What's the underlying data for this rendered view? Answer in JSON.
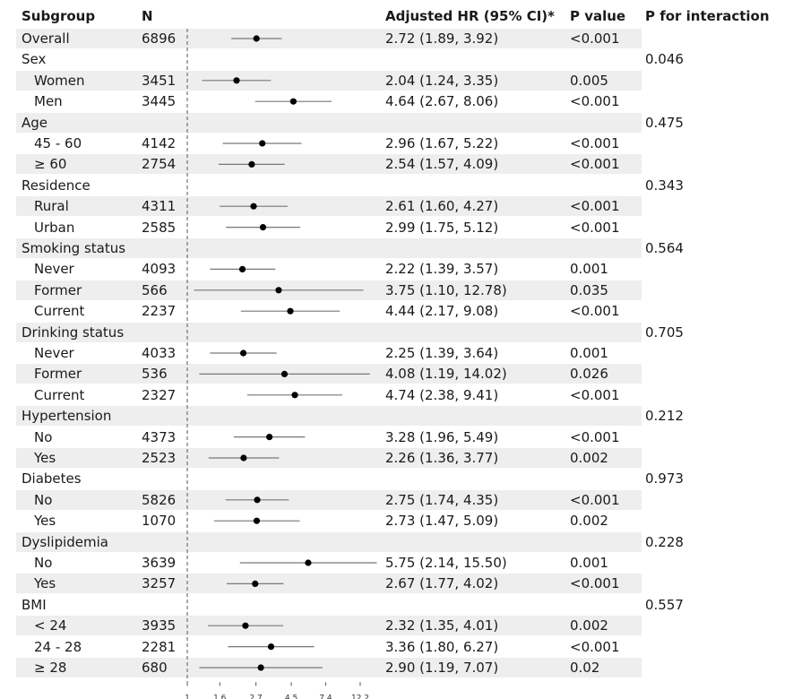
{
  "headers": {
    "subgroup": "Subgroup",
    "n": "N",
    "hr": "Adjusted HR (95% CI)*",
    "p": "P value",
    "p_interaction": "P for interaction"
  },
  "chart_data": {
    "type": "forest",
    "scale": "log",
    "reference_line": 1,
    "x_ticks": [
      1,
      1.6,
      2.7,
      4.5,
      7.4,
      12.2
    ],
    "x_tick_labels": [
      "1",
      "1.6",
      "2.7",
      "4.5",
      "7.4",
      "12.2"
    ],
    "rows": [
      {
        "label": "Overall",
        "n": "6896",
        "hr": 2.72,
        "lo": 1.89,
        "hi": 3.92,
        "hr_text": "2.72 (1.89, 3.92)",
        "p": "<0.001"
      },
      {
        "label": "Sex",
        "group": true,
        "p_interaction": "0.046"
      },
      {
        "label": "Women",
        "n": "3451",
        "hr": 2.04,
        "lo": 1.24,
        "hi": 3.35,
        "hr_text": "2.04 (1.24, 3.35)",
        "p": "0.005"
      },
      {
        "label": "Men",
        "n": "3445",
        "hr": 4.64,
        "lo": 2.67,
        "hi": 8.06,
        "hr_text": "4.64 (2.67, 8.06)",
        "p": "<0.001"
      },
      {
        "label": "Age",
        "group": true,
        "p_interaction": "0.475"
      },
      {
        "label": "45 - 60",
        "n": "4142",
        "hr": 2.96,
        "lo": 1.67,
        "hi": 5.22,
        "hr_text": "2.96 (1.67, 5.22)",
        "p": "<0.001"
      },
      {
        "label": "≥ 60",
        "n": "2754",
        "hr": 2.54,
        "lo": 1.57,
        "hi": 4.09,
        "hr_text": "2.54 (1.57, 4.09)",
        "p": "<0.001"
      },
      {
        "label": "Residence",
        "group": true,
        "p_interaction": "0.343"
      },
      {
        "label": "Rural",
        "n": "4311",
        "hr": 2.61,
        "lo": 1.6,
        "hi": 4.27,
        "hr_text": "2.61 (1.60, 4.27)",
        "p": "<0.001"
      },
      {
        "label": "Urban",
        "n": "2585",
        "hr": 2.99,
        "lo": 1.75,
        "hi": 5.12,
        "hr_text": "2.99 (1.75, 5.12)",
        "p": "<0.001"
      },
      {
        "label": "Smoking status",
        "group": true,
        "p_interaction": "0.564"
      },
      {
        "label": "Never",
        "n": "4093",
        "hr": 2.22,
        "lo": 1.39,
        "hi": 3.57,
        "hr_text": "2.22 (1.39, 3.57)",
        "p": "0.001"
      },
      {
        "label": "Former",
        "n": "566",
        "hr": 3.75,
        "lo": 1.1,
        "hi": 12.78,
        "hr_text": "3.75 (1.10, 12.78)",
        "p": "0.035"
      },
      {
        "label": "Current",
        "n": "2237",
        "hr": 4.44,
        "lo": 2.17,
        "hi": 9.08,
        "hr_text": "4.44 (2.17, 9.08)",
        "p": "<0.001"
      },
      {
        "label": "Drinking status",
        "group": true,
        "p_interaction": "0.705"
      },
      {
        "label": "Never",
        "n": "4033",
        "hr": 2.25,
        "lo": 1.39,
        "hi": 3.64,
        "hr_text": "2.25 (1.39, 3.64)",
        "p": "0.001"
      },
      {
        "label": "Former",
        "n": "536",
        "hr": 4.08,
        "lo": 1.19,
        "hi": 14.02,
        "hr_text": "4.08 (1.19, 14.02)",
        "p": "0.026"
      },
      {
        "label": "Current",
        "n": "2327",
        "hr": 4.74,
        "lo": 2.38,
        "hi": 9.41,
        "hr_text": "4.74 (2.38, 9.41)",
        "p": "<0.001"
      },
      {
        "label": "Hypertension",
        "group": true,
        "p_interaction": "0.212"
      },
      {
        "label": "No",
        "n": "4373",
        "hr": 3.28,
        "lo": 1.96,
        "hi": 5.49,
        "hr_text": "3.28 (1.96, 5.49)",
        "p": "<0.001"
      },
      {
        "label": "Yes",
        "n": "2523",
        "hr": 2.26,
        "lo": 1.36,
        "hi": 3.77,
        "hr_text": "2.26 (1.36, 3.77)",
        "p": "0.002"
      },
      {
        "label": "Diabetes",
        "group": true,
        "p_interaction": "0.973"
      },
      {
        "label": "No",
        "n": "5826",
        "hr": 2.75,
        "lo": 1.74,
        "hi": 4.35,
        "hr_text": "2.75 (1.74, 4.35)",
        "p": "<0.001"
      },
      {
        "label": "Yes",
        "n": "1070",
        "hr": 2.73,
        "lo": 1.47,
        "hi": 5.09,
        "hr_text": "2.73 (1.47, 5.09)",
        "p": "0.002"
      },
      {
        "label": "Dyslipidemia",
        "group": true,
        "p_interaction": "0.228"
      },
      {
        "label": "No",
        "n": "3639",
        "hr": 5.75,
        "lo": 2.14,
        "hi": 15.5,
        "hr_text": "5.75 (2.14, 15.50)",
        "p": "0.001"
      },
      {
        "label": "Yes",
        "n": "3257",
        "hr": 2.67,
        "lo": 1.77,
        "hi": 4.02,
        "hr_text": "2.67 (1.77, 4.02)",
        "p": "<0.001"
      },
      {
        "label": "BMI",
        "group": true,
        "p_interaction": "0.557"
      },
      {
        "label": "< 24",
        "n": "3935",
        "hr": 2.32,
        "lo": 1.35,
        "hi": 4.01,
        "hr_text": "2.32 (1.35, 4.01)",
        "p": "0.002"
      },
      {
        "label": "24 - 28",
        "n": "2281",
        "hr": 3.36,
        "lo": 1.8,
        "hi": 6.27,
        "hr_text": "3.36 (1.80, 6.27)",
        "p": "<0.001"
      },
      {
        "label": "≥ 28",
        "n": "680",
        "hr": 2.9,
        "lo": 1.19,
        "hi": 7.07,
        "hr_text": "2.90 (1.19, 7.07)",
        "p": "0.02"
      }
    ]
  }
}
